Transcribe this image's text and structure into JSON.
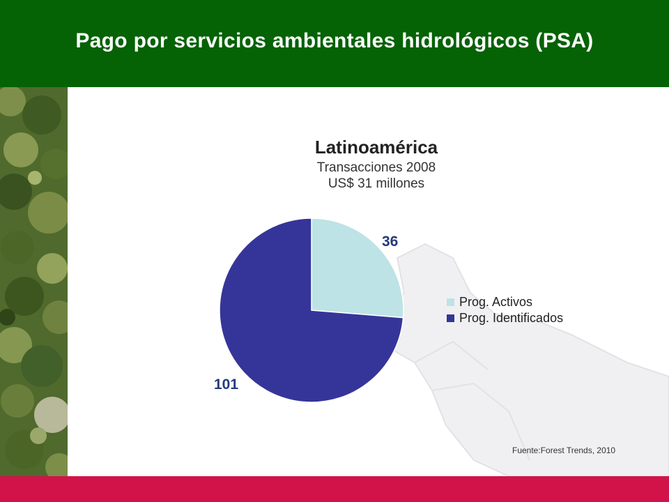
{
  "header": {
    "title": "Pago por servicios ambientales hidrológicos (PSA)"
  },
  "colors": {
    "header_bg": "#056205",
    "footer_bar": "#d2134a",
    "activos": "#bde3e6",
    "identificados": "#353599",
    "label_text": "#233a7d"
  },
  "chart_data": {
    "type": "pie",
    "title": "Latinoamérica",
    "subtitle_lines": [
      "Transacciones 2008",
      "US$ 31 millones"
    ],
    "slices": [
      {
        "name": "Prog. Activos",
        "value": 36,
        "label": "36",
        "color": "#bde3e6"
      },
      {
        "name": "Prog. Identificados",
        "value": 101,
        "label": "101",
        "color": "#353599"
      }
    ],
    "legend_position": "right"
  },
  "source": {
    "text": "Fuente:Forest Trends, 2010"
  }
}
